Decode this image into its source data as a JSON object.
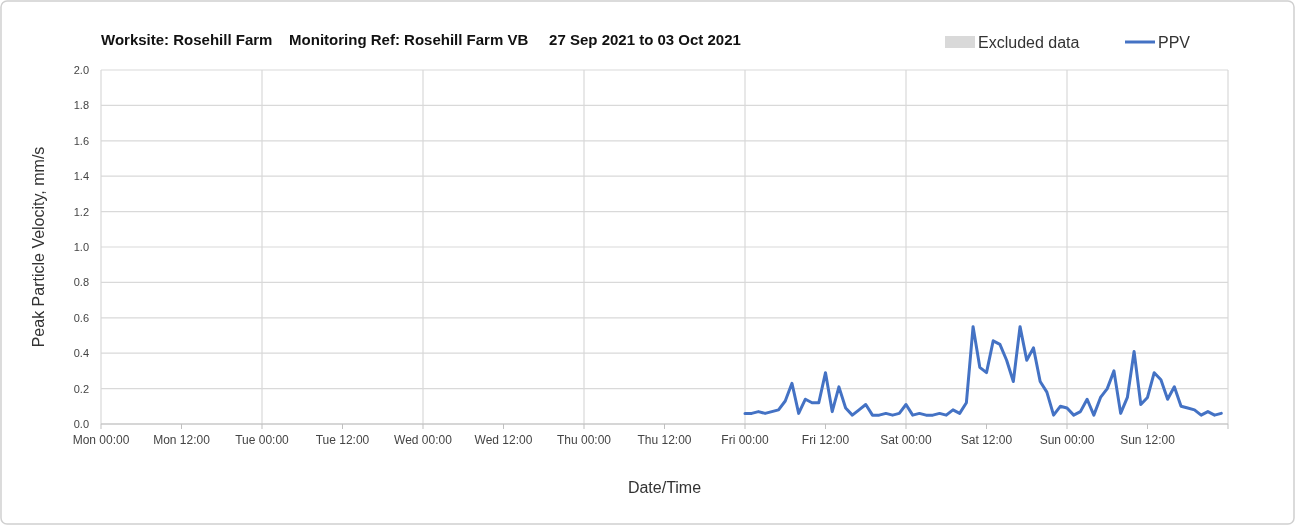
{
  "chart_data": {
    "type": "line",
    "title": "Worksite: Rosehill Farm    Monitoring Ref: Rosehill Farm VB     27 Sep 2021 to 03 Oct 2021",
    "xlabel": "Date/Time",
    "ylabel": "Peak Particle Velocity, mm/s",
    "x": [
      "2021-10-01T00:00",
      "2021-10-01T01:00",
      "2021-10-01T02:00",
      "2021-10-01T03:00",
      "2021-10-01T04:00",
      "2021-10-01T05:00",
      "2021-10-01T06:00",
      "2021-10-01T07:00",
      "2021-10-01T08:00",
      "2021-10-01T09:00",
      "2021-10-01T10:00",
      "2021-10-01T11:00",
      "2021-10-01T12:00",
      "2021-10-01T13:00",
      "2021-10-01T14:00",
      "2021-10-01T15:00",
      "2021-10-01T16:00",
      "2021-10-01T17:00",
      "2021-10-01T18:00",
      "2021-10-01T19:00",
      "2021-10-01T20:00",
      "2021-10-01T21:00",
      "2021-10-01T22:00",
      "2021-10-01T23:00",
      "2021-10-02T00:00",
      "2021-10-02T01:00",
      "2021-10-02T02:00",
      "2021-10-02T03:00",
      "2021-10-02T04:00",
      "2021-10-02T05:00",
      "2021-10-02T06:00",
      "2021-10-02T07:00",
      "2021-10-02T08:00",
      "2021-10-02T09:00",
      "2021-10-02T10:00",
      "2021-10-02T11:00",
      "2021-10-02T12:00",
      "2021-10-02T13:00",
      "2021-10-02T14:00",
      "2021-10-02T15:00",
      "2021-10-02T16:00",
      "2021-10-02T17:00",
      "2021-10-02T18:00",
      "2021-10-02T19:00",
      "2021-10-02T20:00",
      "2021-10-02T21:00",
      "2021-10-02T22:00",
      "2021-10-02T23:00",
      "2021-10-03T00:00",
      "2021-10-03T01:00",
      "2021-10-03T02:00",
      "2021-10-03T03:00",
      "2021-10-03T04:00",
      "2021-10-03T05:00",
      "2021-10-03T06:00",
      "2021-10-03T07:00",
      "2021-10-03T08:00",
      "2021-10-03T09:00",
      "2021-10-03T10:00",
      "2021-10-03T11:00",
      "2021-10-03T12:00",
      "2021-10-03T13:00",
      "2021-10-03T14:00",
      "2021-10-03T15:00",
      "2021-10-03T16:00",
      "2021-10-03T17:00",
      "2021-10-03T18:00",
      "2021-10-03T19:00",
      "2021-10-03T20:00",
      "2021-10-03T21:00",
      "2021-10-03T22:00",
      "2021-10-03T23:00"
    ],
    "series": [
      {
        "name": "Excluded data",
        "type": "area",
        "color": "#d9d9d9",
        "values": [
          null,
          null,
          null,
          null,
          null,
          null,
          null,
          null,
          null,
          null,
          null,
          null,
          null,
          null,
          null,
          null,
          null,
          null,
          null,
          null,
          null,
          null,
          null,
          null,
          null,
          null,
          null,
          null,
          null,
          null,
          null,
          null,
          null,
          null,
          null,
          null,
          null,
          null,
          null,
          null,
          null,
          null,
          null,
          null,
          null,
          null,
          null,
          null,
          null,
          null,
          null,
          null,
          null,
          null,
          null,
          null,
          null,
          null,
          null,
          null,
          null,
          null,
          null,
          null,
          null,
          null,
          null,
          null,
          null,
          null,
          null,
          null
        ]
      },
      {
        "name": "PPV",
        "color": "#4472c4",
        "values": [
          0.06,
          0.06,
          0.07,
          0.06,
          0.07,
          0.08,
          0.13,
          0.23,
          0.06,
          0.14,
          0.12,
          0.12,
          0.29,
          0.07,
          0.21,
          0.09,
          0.05,
          0.08,
          0.11,
          0.05,
          0.05,
          0.06,
          0.05,
          0.06,
          0.11,
          0.05,
          0.06,
          0.05,
          0.05,
          0.06,
          0.05,
          0.08,
          0.06,
          0.12,
          0.55,
          0.32,
          0.29,
          0.47,
          0.45,
          0.36,
          0.24,
          0.55,
          0.36,
          0.43,
          0.24,
          0.18,
          0.05,
          0.1,
          0.09,
          0.05,
          0.07,
          0.14,
          0.05,
          0.15,
          0.2,
          0.3,
          0.06,
          0.15,
          0.41,
          0.11,
          0.15,
          0.29,
          0.25,
          0.14,
          0.21,
          0.1,
          0.09,
          0.08,
          0.05,
          0.07,
          0.05,
          0.06
        ]
      }
    ],
    "xlim": [
      "2021-09-27T00:00",
      "2021-10-04T00:00"
    ],
    "xticks": [
      {
        "value": "2021-09-27T00:00",
        "label": "Mon 00:00"
      },
      {
        "value": "2021-09-27T12:00",
        "label": "Mon 12:00"
      },
      {
        "value": "2021-09-28T00:00",
        "label": "Tue 00:00"
      },
      {
        "value": "2021-09-28T12:00",
        "label": "Tue 12:00"
      },
      {
        "value": "2021-09-29T00:00",
        "label": "Wed 00:00"
      },
      {
        "value": "2021-09-29T12:00",
        "label": "Wed 12:00"
      },
      {
        "value": "2021-09-30T00:00",
        "label": "Thu 00:00"
      },
      {
        "value": "2021-09-30T12:00",
        "label": "Thu 12:00"
      },
      {
        "value": "2021-10-01T00:00",
        "label": "Fri 00:00"
      },
      {
        "value": "2021-10-01T12:00",
        "label": "Fri 12:00"
      },
      {
        "value": "2021-10-02T00:00",
        "label": "Sat 00:00"
      },
      {
        "value": "2021-10-02T12:00",
        "label": "Sat 12:00"
      },
      {
        "value": "2021-10-03T00:00",
        "label": "Sun 00:00"
      },
      {
        "value": "2021-10-03T12:00",
        "label": "Sun 12:00"
      },
      {
        "value": "2021-10-04T00:00",
        "label": null
      }
    ],
    "ylim": [
      0,
      2
    ],
    "yticks": [
      {
        "value": 0,
        "label": "0.0"
      },
      0.2,
      0.4,
      0.6,
      0.8,
      {
        "value": 1,
        "label": "1.0"
      },
      1.2,
      1.4,
      1.6,
      1.8,
      {
        "value": 2,
        "label": "2.0"
      }
    ],
    "grid": true,
    "legend": "top right"
  }
}
